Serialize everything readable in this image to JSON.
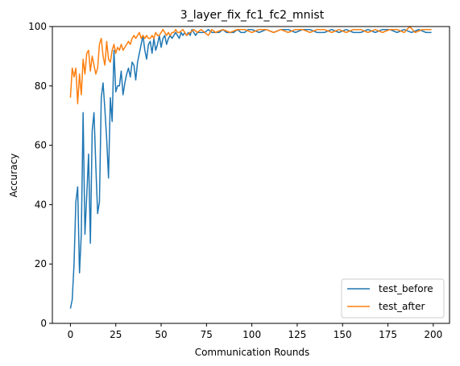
{
  "chart_data": {
    "type": "line",
    "title": "3_layer_fix_fc1_fc2_mnist",
    "xlabel": "Communication Rounds",
    "ylabel": "Accuracy",
    "xlim": [
      -9.95,
      208.95
    ],
    "ylim": [
      0,
      100
    ],
    "xticks": [
      0,
      25,
      50,
      75,
      100,
      125,
      150,
      175,
      200
    ],
    "yticks": [
      0,
      20,
      40,
      60,
      80,
      100
    ],
    "grid": false,
    "legend_position": "lower right",
    "series": [
      {
        "name": "test_before",
        "color": "#1f77b4",
        "x": [
          0,
          1,
          2,
          3,
          4,
          5,
          6,
          7,
          8,
          9,
          10,
          11,
          12,
          13,
          14,
          15,
          16,
          17,
          18,
          19,
          20,
          21,
          22,
          23,
          24,
          25,
          26,
          27,
          28,
          29,
          30,
          31,
          32,
          33,
          34,
          35,
          36,
          37,
          38,
          39,
          40,
          41,
          42,
          43,
          44,
          45,
          46,
          47,
          48,
          49,
          50,
          51,
          52,
          53,
          54,
          55,
          56,
          57,
          58,
          59,
          60,
          61,
          62,
          63,
          64,
          65,
          66,
          67,
          68,
          69,
          70,
          72,
          74,
          76,
          78,
          80,
          82,
          84,
          86,
          88,
          90,
          92,
          94,
          96,
          98,
          100,
          104,
          108,
          112,
          116,
          120,
          124,
          128,
          132,
          136,
          140,
          144,
          148,
          152,
          156,
          160,
          164,
          168,
          172,
          176,
          180,
          184,
          188,
          192,
          196,
          199
        ],
        "y": [
          5,
          8,
          20,
          41,
          46,
          17,
          30,
          71,
          30,
          43,
          57,
          27,
          65,
          71,
          53,
          37,
          41,
          76,
          81,
          72,
          62,
          49,
          76,
          68,
          92,
          78,
          80,
          80,
          85,
          77,
          81,
          84,
          86,
          83,
          88,
          87,
          82,
          88,
          91,
          94,
          97,
          92,
          89,
          94,
          95,
          91,
          96,
          92,
          94,
          97,
          93,
          96,
          97,
          94,
          96,
          97,
          96,
          97,
          98,
          97,
          96,
          98,
          97,
          98,
          97,
          98,
          97,
          99,
          98,
          97,
          98,
          98,
          98,
          99,
          98,
          98,
          98,
          99,
          98,
          98,
          98,
          99,
          98,
          98,
          99,
          99,
          98,
          99,
          98,
          99,
          99,
          98,
          99,
          99,
          98,
          98,
          99,
          98,
          99,
          98,
          98,
          99,
          98,
          99,
          99,
          98,
          99,
          98,
          99,
          98,
          98
        ]
      },
      {
        "name": "test_after",
        "color": "#ff7f0e",
        "x": [
          0,
          1,
          2,
          3,
          4,
          5,
          6,
          7,
          8,
          9,
          10,
          11,
          12,
          13,
          14,
          15,
          16,
          17,
          18,
          19,
          20,
          21,
          22,
          23,
          24,
          25,
          26,
          27,
          28,
          29,
          30,
          31,
          32,
          33,
          34,
          35,
          36,
          37,
          38,
          39,
          40,
          41,
          42,
          43,
          44,
          45,
          46,
          47,
          48,
          49,
          50,
          51,
          52,
          53,
          54,
          55,
          56,
          57,
          58,
          59,
          60,
          62,
          64,
          66,
          68,
          70,
          72,
          74,
          76,
          78,
          80,
          84,
          88,
          92,
          96,
          100,
          104,
          108,
          112,
          116,
          120,
          124,
          128,
          132,
          136,
          140,
          144,
          148,
          152,
          156,
          160,
          164,
          168,
          172,
          176,
          180,
          184,
          187,
          190,
          194,
          199
        ],
        "y": [
          76,
          86,
          83,
          86,
          74,
          84,
          77,
          89,
          84,
          91,
          92,
          85,
          90,
          87,
          84,
          86,
          94,
          96,
          90,
          87,
          95,
          89,
          88,
          92,
          94,
          91,
          93,
          92,
          94,
          92,
          93,
          94,
          95,
          94,
          96,
          97,
          96,
          97,
          98,
          96,
          97,
          96,
          97,
          96,
          96,
          97,
          96,
          98,
          97,
          97,
          98,
          99,
          98,
          97,
          98,
          97,
          98,
          98,
          99,
          98,
          98,
          99,
          97,
          98,
          99,
          98,
          99,
          98,
          97,
          99,
          98,
          99,
          98,
          99,
          99,
          98,
          99,
          99,
          98,
          99,
          98,
          99,
          99,
          98,
          99,
          99,
          98,
          99,
          98,
          99,
          99,
          98,
          99,
          98,
          99,
          99,
          98,
          100,
          98,
          99,
          99
        ]
      }
    ]
  }
}
